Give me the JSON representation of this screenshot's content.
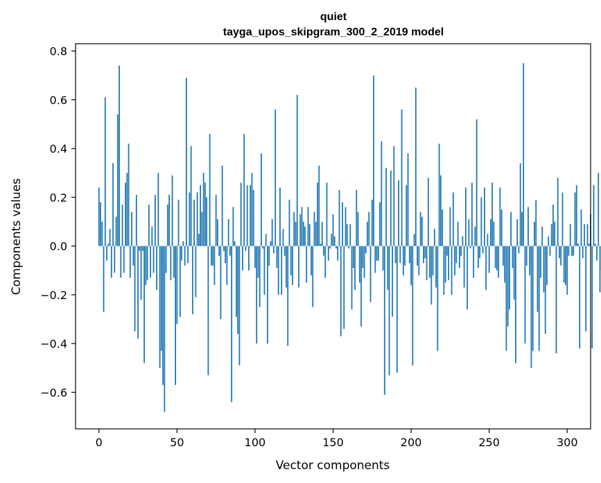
{
  "chart_data": {
    "type": "bar",
    "title": "quiet",
    "subtitle": "tayga_upos_skipgram_300_2_2019 model",
    "xlabel": "Vector components",
    "ylabel": "Components values",
    "xlim": [
      -15,
      315
    ],
    "ylim": [
      -0.75,
      0.83
    ],
    "xticks": [
      0,
      50,
      100,
      150,
      200,
      250,
      300
    ],
    "xtick_labels": [
      "0",
      "50",
      "100",
      "150",
      "200",
      "250",
      "300"
    ],
    "yticks": [
      -0.6,
      -0.4,
      -0.2,
      0.0,
      0.2,
      0.4,
      0.6,
      0.8
    ],
    "ytick_labels": [
      "−0.6",
      "−0.4",
      "−0.2",
      "0.0",
      "0.2",
      "0.4",
      "0.6",
      "0.8"
    ],
    "bar_color": "#1f77b4",
    "values": [
      0.24,
      0.18,
      0.1,
      -0.27,
      0.61,
      -0.06,
      0.01,
      0.07,
      -0.13,
      0.34,
      -0.11,
      0.12,
      0.54,
      0.74,
      -0.13,
      0.17,
      -0.11,
      0.26,
      0.3,
      0.42,
      -0.13,
      0.14,
      -0.08,
      -0.35,
      0.21,
      -0.38,
      -0.02,
      -0.22,
      -0.02,
      -0.48,
      -0.16,
      -0.14,
      0.17,
      -0.13,
      0.08,
      -0.11,
      0.21,
      -0.18,
      0.3,
      -0.5,
      -0.43,
      -0.57,
      -0.68,
      -0.11,
      0.17,
      0.21,
      -0.14,
      0.29,
      -0.13,
      -0.57,
      -0.32,
      0.19,
      -0.29,
      -0.06,
      0.02,
      -0.08,
      0.69,
      -0.07,
      0.22,
      0.41,
      -0.28,
      0.19,
      -0.21,
      0.22,
      0.05,
      0.25,
      0.14,
      0.3,
      0.26,
      0.2,
      -0.53,
      0.46,
      -0.08,
      -0.08,
      -0.16,
      0.21,
      0.11,
      -0.04,
      -0.3,
      0.33,
      -0.02,
      -0.07,
      -0.16,
      0.11,
      -0.04,
      -0.64,
      0.16,
      0.02,
      -0.29,
      -0.36,
      -0.49,
      0.26,
      -0.1,
      0.46,
      -0.02,
      0.25,
      -0.1,
      0.25,
      0.3,
      0.23,
      -0.09,
      -0.4,
      -0.13,
      -0.25,
      0.38,
      -0.01,
      -0.2,
      0.05,
      -0.4,
      -0.08,
      0.02,
      0.11,
      -0.03,
      0.56,
      -0.09,
      -0.2,
      0.24,
      -0.2,
      0.07,
      -0.04,
      -0.17,
      -0.41,
      0.19,
      -0.12,
      -0.16,
      0.14,
      0.1,
      0.62,
      -0.17,
      0.13,
      0.16,
      0.1,
      0.08,
      -0.15,
      0.16,
      0.09,
      -0.12,
      -0.25,
      0.14,
      0.1,
      0.26,
      0.33,
      0.01,
      0.1,
      -0.04,
      -0.13,
      0.26,
      -0.06,
      -0.01,
      0.05,
      0.13,
      0.04,
      -0.01,
      -0.06,
      0.23,
      -0.37,
      0.18,
      -0.34,
      0.16,
      0.09,
      -0.01,
      0.09,
      -0.26,
      -0.09,
      -0.18,
      0.23,
      0.14,
      -0.15,
      -0.33,
      -0.09,
      -0.13,
      -0.03,
      0.1,
      0.14,
      -0.23,
      0.19,
      0.7,
      -0.11,
      -0.06,
      -0.06,
      0.18,
      0.43,
      -0.1,
      -0.61,
      0.32,
      -0.18,
      -0.53,
      0.31,
      -0.29,
      0.41,
      -0.07,
      -0.52,
      0.27,
      -0.07,
      0.56,
      -0.12,
      -0.08,
      0.25,
      0.38,
      -0.07,
      -0.16,
      -0.49,
      0.05,
      0.65,
      -0.08,
      -0.12,
      0.14,
      0.12,
      -0.07,
      -0.05,
      -0.14,
      0.28,
      -0.13,
      -0.24,
      -0.12,
      0.07,
      -0.17,
      -0.43,
      0.42,
      0.29,
      0.15,
      -0.2,
      -0.15,
      -0.04,
      -0.14,
      0.16,
      -0.2,
      0.22,
      -0.12,
      -0.07,
      0.1,
      -0.09,
      -0.04,
      0.04,
      -0.17,
      0.24,
      -0.26,
      0.11,
      -0.01,
      0.26,
      -0.13,
      0.08,
      0.52,
      -0.09,
      -0.05,
      0.2,
      -0.03,
      0.24,
      -0.18,
      0.05,
      -0.11,
      0.11,
      0.26,
      0.1,
      -0.09,
      -0.1,
      -0.13,
      0.24,
      0.15,
      -0.08,
      -0.15,
      -0.43,
      -0.33,
      -0.26,
      0.14,
      -0.09,
      -0.22,
      -0.48,
      0.11,
      -0.03,
      0.34,
      0.14,
      0.75,
      -0.4,
      -0.08,
      0.16,
      -0.12,
      -0.5,
      -0.43,
      0.1,
      0.19,
      -0.27,
      -0.43,
      -0.13,
      0.08,
      -0.19,
      -0.36,
      -0.16,
      0.04,
      -0.04,
      0.09,
      0.17,
      0.1,
      -0.44,
      0.28,
      -0.05,
      -0.08,
      0.22,
      -0.15,
      -0.16,
      -0.2,
      -0.04,
      0.09,
      -0.04,
      -0.04,
      0.22,
      0.25,
      0.01,
      -0.42,
      0.15,
      -0.05,
      0.09,
      -0.35,
      0.09,
      0.01,
      0.13,
      -0.42,
      0.25,
      0.01,
      -0.06,
      0.3,
      -0.19,
      -0.1
    ]
  }
}
